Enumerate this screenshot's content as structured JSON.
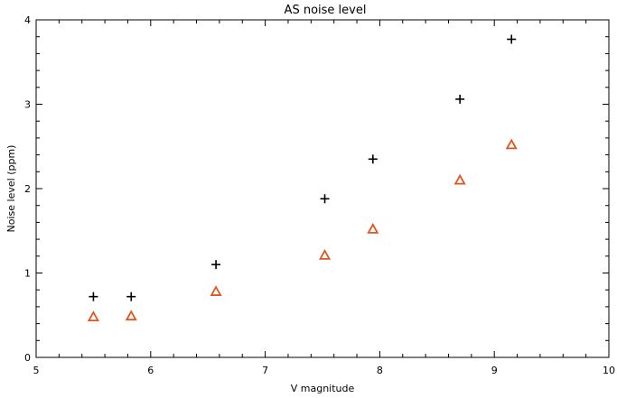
{
  "chart_data": {
    "type": "scatter",
    "title": "AS noise level",
    "xlabel": "V magnitude",
    "ylabel": "Noise level (ppm)",
    "xlim": [
      5,
      10
    ],
    "ylim": [
      0,
      4
    ],
    "xticks": [
      5,
      6,
      7,
      8,
      9,
      10
    ],
    "yticks": [
      0,
      1,
      2,
      3,
      4
    ],
    "xtick_labels": [
      "5",
      "6",
      "7",
      "8",
      "9",
      "10"
    ],
    "ytick_labels": [
      "0",
      "1",
      "2",
      "3",
      "4"
    ],
    "grid": false,
    "legend": "none",
    "series": [
      {
        "marker": "plus",
        "color": "#000000",
        "x": [
          5.5,
          5.83,
          6.57,
          7.52,
          7.94,
          8.7,
          9.15
        ],
        "y": [
          0.72,
          0.72,
          1.1,
          1.88,
          2.35,
          3.06,
          3.77
        ]
      },
      {
        "marker": "triangle",
        "color": "#e2541f",
        "x": [
          5.5,
          5.83,
          6.57,
          7.52,
          7.94,
          8.7,
          9.15
        ],
        "y": [
          0.48,
          0.49,
          0.78,
          1.21,
          1.52,
          2.1,
          2.52
        ]
      }
    ]
  }
}
